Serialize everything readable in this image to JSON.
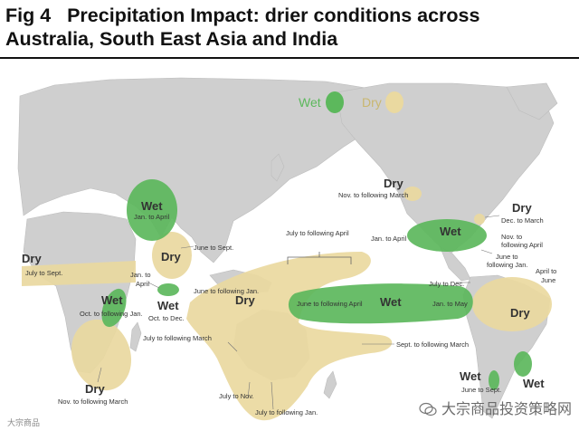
{
  "figure": {
    "label": "Fig 4",
    "title_line1": "Precipitation Impact: drier conditions across",
    "title_line2": "Australia, South East Asia and India"
  },
  "legend": {
    "wet": "Wet",
    "dry": "Dry",
    "wet_color": "#5cb85c",
    "dry_color": "#ead9a0"
  },
  "regions": {
    "west_africa": {
      "type": "Dry",
      "season": "July to Sept."
    },
    "horn_africa": {
      "type": "Wet",
      "season": "Jan. to April"
    },
    "india": {
      "type": "Dry",
      "season": "June to Sept."
    },
    "south_india": {
      "type": "Wet",
      "season": "Oct. to Dec."
    },
    "east_africa": {
      "type": "Wet",
      "season": "Oct. to following Jan."
    },
    "south_africa": {
      "type": "Dry",
      "season": "Nov. to following March"
    },
    "sri_lanka_note": "Jan. to April",
    "indonesia": {
      "type": "Dry",
      "season": "June to following Jan."
    },
    "australia_seasons": [
      "July to following March",
      "July to Nov.",
      "July to following Jan."
    ],
    "pacific_band": "July to following April",
    "pacific_wet": {
      "type": "Wet",
      "left": "June to following April",
      "right": "Jan. to May"
    },
    "south_pacific": "Sept. to following March",
    "north_america": {
      "type": "Dry",
      "season": "Nov. to following March"
    },
    "us_south": {
      "type": "Wet",
      "season": "Jan. to April"
    },
    "us_east": {
      "type": "Dry",
      "season": "Dec. to March"
    },
    "gulf_note1": "Nov. to following April",
    "gulf_note2": "June to following Jan.",
    "south_america_note": "July to Dec.",
    "brazil": {
      "type": "Dry",
      "season": "April to June"
    },
    "argentina": {
      "type": "Wet",
      "season": "June to Sept."
    },
    "argentina_east": {
      "type": "Wet"
    }
  },
  "watermark": {
    "brand": "大宗商品投资策略网",
    "small": "大宗商品"
  },
  "icons": [
    "wechat-icon"
  ]
}
